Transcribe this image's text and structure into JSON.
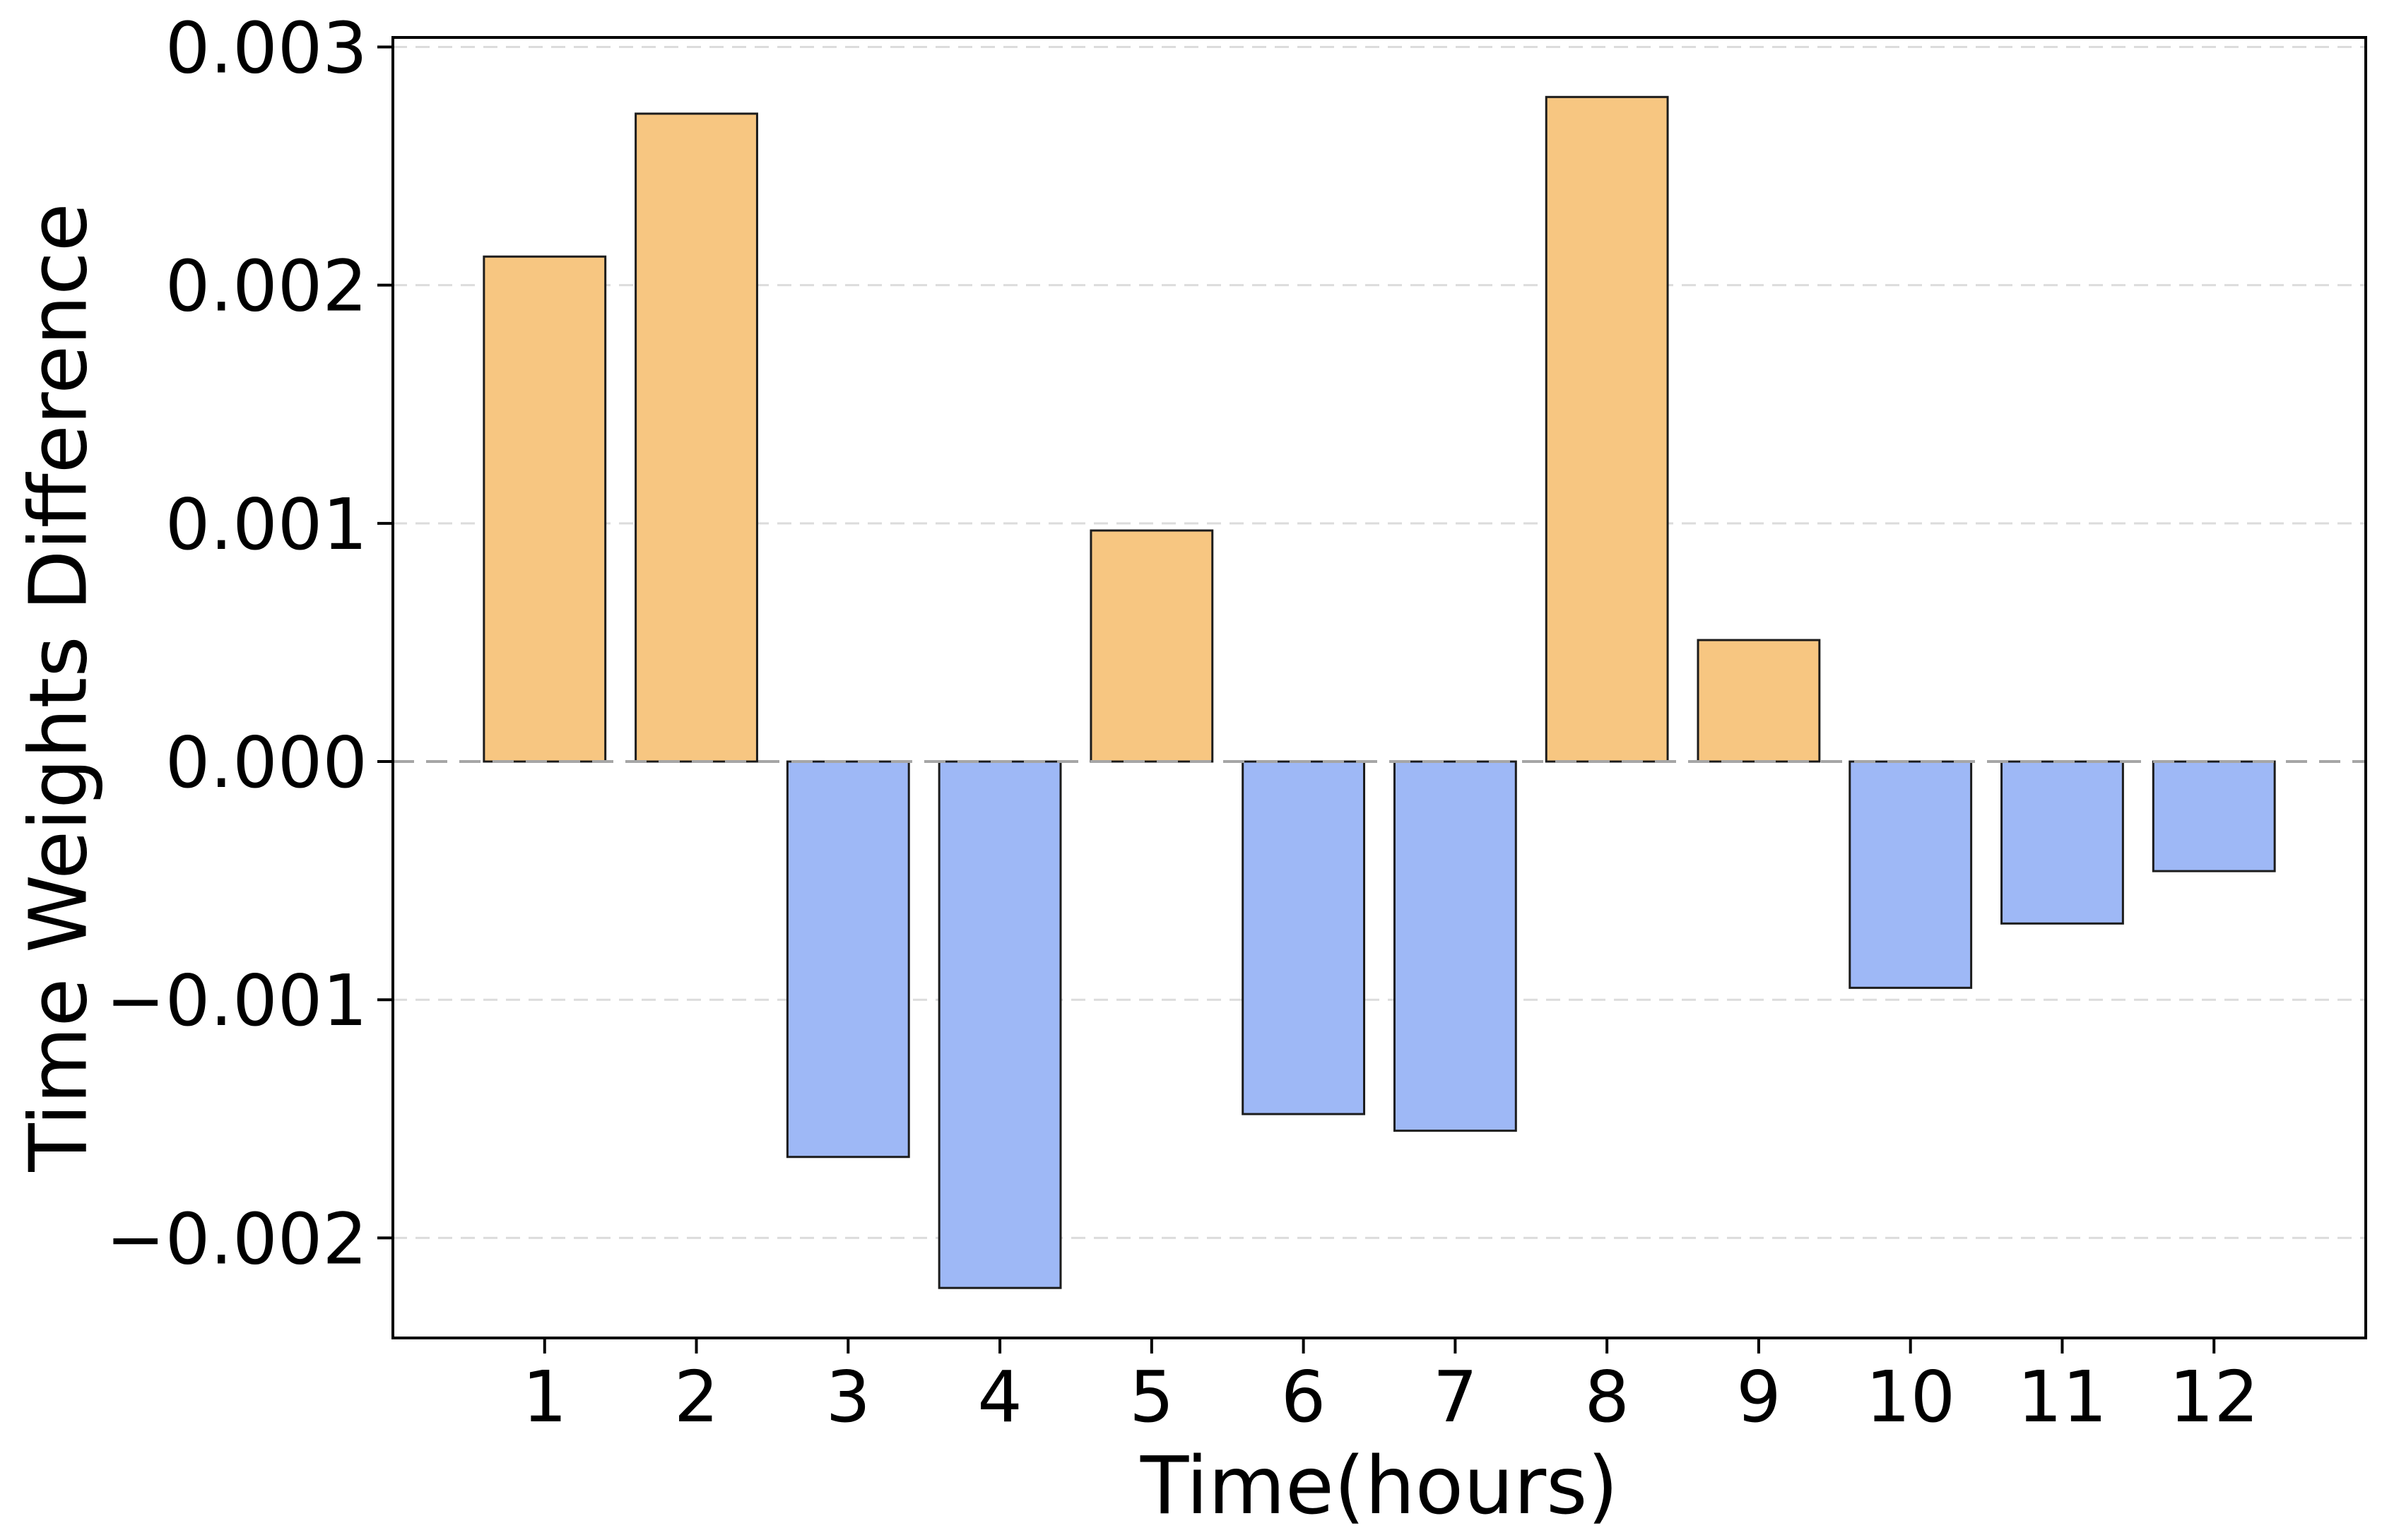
{
  "chart_data": {
    "type": "bar",
    "title": "",
    "xlabel": "Time(hours)",
    "ylabel": "Time Weights Difference",
    "categories": [
      "1",
      "2",
      "3",
      "4",
      "5",
      "6",
      "7",
      "8",
      "9",
      "10",
      "11",
      "12"
    ],
    "values": [
      0.00212,
      0.00272,
      -0.00166,
      -0.00221,
      0.00097,
      -0.00148,
      -0.00155,
      0.00279,
      0.00051,
      -0.00095,
      -0.00068,
      -0.00046
    ],
    "positive_color": "#f7c681",
    "negative_color": "#9eb8f6",
    "bar_edge_color": "#1c1c1c",
    "bar_width": 0.8,
    "xlim": [
      0,
      13
    ],
    "ylim": [
      -0.00242,
      0.00304
    ],
    "yticks": [
      -0.002,
      -0.001,
      0,
      0.001,
      0.002,
      0.003
    ],
    "ytick_labels": [
      "−0.002",
      "−0.001",
      "0.000",
      "0.001",
      "0.002",
      "0.003"
    ],
    "grid": "dashed horizontal",
    "grid_color": "#dcdcdc",
    "zero_line_color": "#a6a6a6",
    "axis_color": "#000000",
    "legend_position": "none"
  }
}
